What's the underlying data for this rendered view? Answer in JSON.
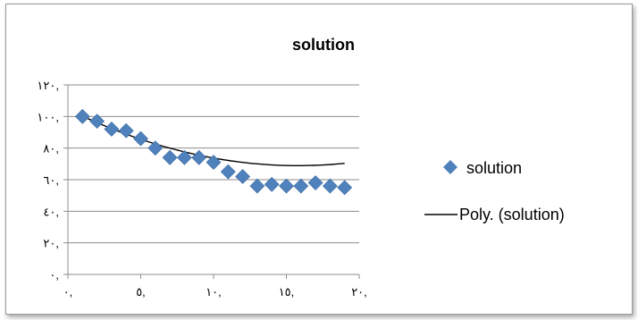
{
  "chart_data": {
    "type": "scatter",
    "title": "solution",
    "xlim": [
      0,
      20
    ],
    "ylim": [
      0,
      120
    ],
    "x_ticks": [
      0,
      5,
      10,
      15,
      20
    ],
    "x_tick_labels": [
      "٠,",
      "٥,",
      "١٠,",
      "١٥,",
      "٢٠,"
    ],
    "y_ticks": [
      0,
      20,
      40,
      60,
      80,
      100,
      120
    ],
    "y_tick_labels": [
      "٠,",
      "٢٠,",
      "٤٠,",
      "٦٠,",
      "٨٠,",
      "١٠٠,",
      "١٢٠,"
    ],
    "grid": true,
    "legend_position": "right",
    "series": [
      {
        "name": "solution",
        "kind": "points",
        "marker": "diamond",
        "color": "#4f81bd",
        "x": [
          1,
          2,
          3,
          4,
          5,
          6,
          7,
          8,
          9,
          10,
          11,
          12,
          13,
          14,
          15,
          16,
          17,
          18,
          19
        ],
        "y": [
          100,
          97,
          92,
          91,
          86,
          80,
          74,
          74,
          74,
          71,
          65,
          62,
          56,
          57,
          56,
          56,
          58,
          56,
          55
        ]
      },
      {
        "name": "Poly. (solution)",
        "kind": "line",
        "color": "#000000",
        "coeffs": [
          104.6,
          -4.52,
          0.143
        ]
      }
    ]
  }
}
